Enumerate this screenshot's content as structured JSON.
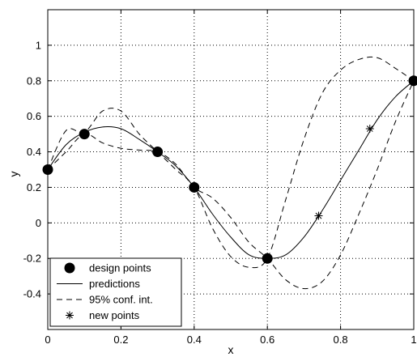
{
  "chart_data": {
    "type": "line",
    "title": "",
    "xlabel": "x",
    "ylabel": "y",
    "xlim": [
      0,
      1
    ],
    "ylim": [
      -0.6,
      1.2
    ],
    "x_ticks": [
      0,
      0.2,
      0.4,
      0.6,
      0.8,
      1
    ],
    "x_tick_labels": [
      "0",
      "0.2",
      "0.4",
      "0.6",
      "0.8",
      "1"
    ],
    "y_ticks": [
      -0.4,
      -0.2,
      0,
      0.2,
      0.4,
      0.6,
      0.8,
      1
    ],
    "y_tick_labels": [
      "-0.4",
      "-0.2",
      "0",
      "0.2",
      "0.4",
      "0.6",
      "0.8",
      "1"
    ],
    "grid": true,
    "grid_style": "dotted",
    "legend_position": "bottom-left",
    "series": [
      {
        "name": "design points",
        "kind": "markers",
        "marker": "filled-circle",
        "x": [
          0,
          0.1,
          0.3,
          0.4,
          0.6,
          1.0
        ],
        "y": [
          0.3,
          0.5,
          0.4,
          0.2,
          -0.2,
          0.8
        ]
      },
      {
        "name": "predictions",
        "kind": "line",
        "style": "solid",
        "x": [
          0,
          0.05,
          0.1,
          0.15,
          0.2,
          0.25,
          0.3,
          0.35,
          0.4,
          0.45,
          0.5,
          0.55,
          0.6,
          0.65,
          0.7,
          0.75,
          0.8,
          0.85,
          0.9,
          0.95,
          1.0
        ],
        "y": [
          0.3,
          0.44,
          0.51,
          0.54,
          0.53,
          0.47,
          0.4,
          0.32,
          0.2,
          0.05,
          -0.08,
          -0.18,
          -0.2,
          -0.18,
          -0.08,
          0.07,
          0.24,
          0.41,
          0.58,
          0.71,
          0.8
        ]
      },
      {
        "name": "95% conf. int.",
        "kind": "line",
        "style": "dashed",
        "x": [
          0,
          0.05,
          0.1,
          0.15,
          0.2,
          0.25,
          0.3,
          0.35,
          0.4,
          0.45,
          0.5,
          0.55,
          0.6,
          0.65,
          0.7,
          0.75,
          0.8,
          0.85,
          0.9,
          0.95,
          1.0
        ],
        "y": [
          0.3,
          0.52,
          0.51,
          0.63,
          0.63,
          0.5,
          0.4,
          0.3,
          0.2,
          -0.03,
          -0.19,
          -0.25,
          -0.2,
          0.13,
          0.47,
          0.73,
          0.86,
          0.92,
          0.93,
          0.87,
          0.8
        ]
      },
      {
        "name": "95% conf. int.",
        "kind": "line",
        "style": "dashed",
        "show_in_legend": false,
        "x": [
          0,
          0.05,
          0.1,
          0.15,
          0.2,
          0.25,
          0.3,
          0.35,
          0.4,
          0.45,
          0.5,
          0.55,
          0.6,
          0.65,
          0.7,
          0.75,
          0.8,
          0.85,
          0.9,
          0.95,
          1.0
        ],
        "y": [
          0.3,
          0.4,
          0.5,
          0.45,
          0.42,
          0.41,
          0.4,
          0.33,
          0.2,
          0.14,
          0.03,
          -0.11,
          -0.2,
          -0.32,
          -0.37,
          -0.33,
          -0.18,
          0.05,
          0.3,
          0.57,
          0.8
        ]
      },
      {
        "name": "new points",
        "kind": "markers",
        "marker": "asterisk",
        "x": [
          0.74,
          0.88
        ],
        "y": [
          0.04,
          0.53
        ]
      }
    ]
  }
}
